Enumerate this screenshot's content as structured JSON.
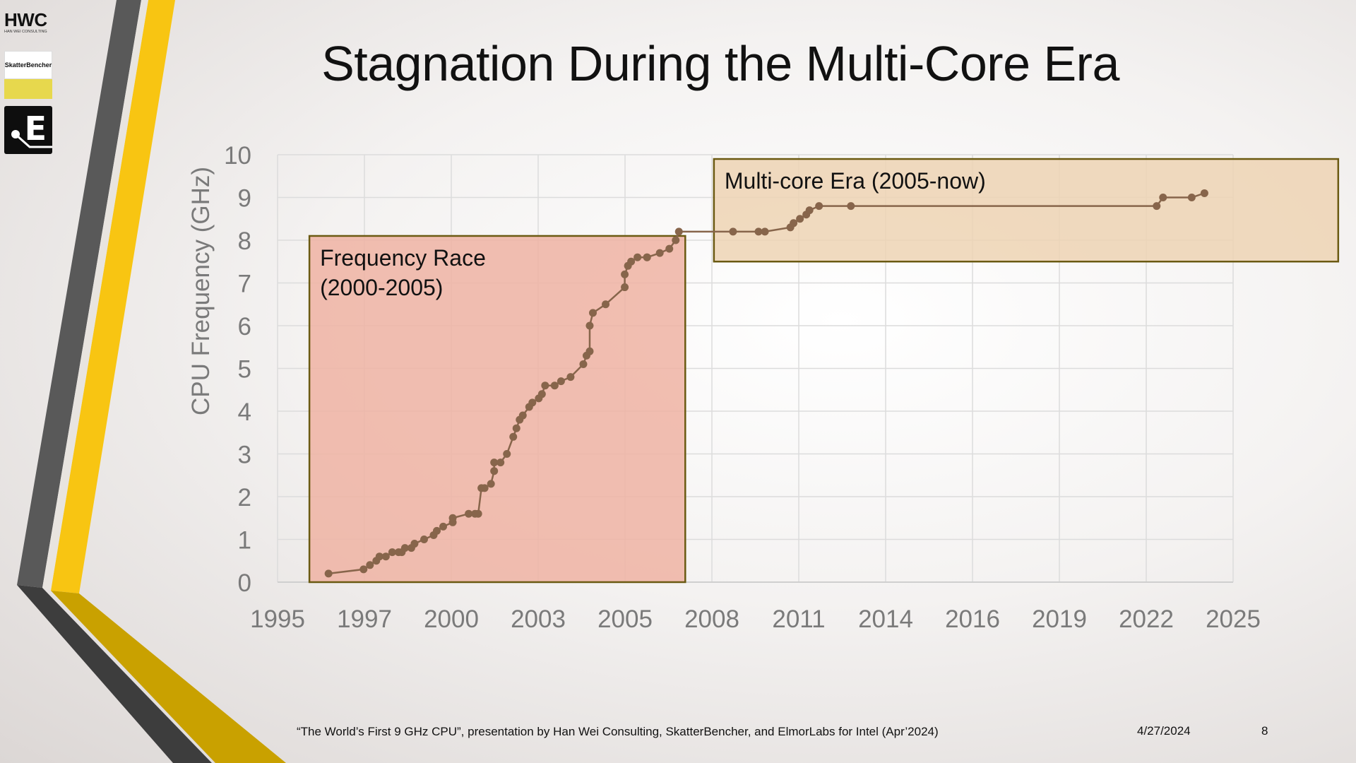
{
  "slide": {
    "title": "Stagnation During the Multi-Core Era",
    "footer_note": "“The World’s First 9 GHz CPU”, presentation by Han Wei Consulting, SkatterBencher, and ElmorLabs for Intel (Apr’2024)",
    "date": "4/27/2024",
    "page_number": "8"
  },
  "logos": {
    "hwc_text": "HWC",
    "hwc_subtext": "HAN WEI CONSULTING",
    "skatterbencher_text": "SkatterBencher",
    "elmorlabs_letter": "E"
  },
  "colors": {
    "accent_yellow": "#f8c512",
    "accent_dark_yellow": "#c9a100",
    "stripe_gray": "#595959",
    "stripe_dark": "#3a3a3a",
    "series_color": "#87654b",
    "frequency_race_fill": "#efb3a3",
    "multicore_fill": "#edd3b4",
    "box_border": "#6b5a12"
  },
  "chart_data": {
    "type": "scatter",
    "title": "",
    "xlabel": "",
    "ylabel": "CPU Frequency (GHz)",
    "xlim": [
      1995,
      2025
    ],
    "ylim": [
      0,
      10
    ],
    "x_ticks": [
      "1995",
      "1997",
      "2000",
      "2003",
      "2005",
      "2008",
      "2011",
      "2014",
      "2016",
      "2019",
      "2022",
      "2025"
    ],
    "y_ticks": [
      "0",
      "1",
      "2",
      "3",
      "4",
      "5",
      "6",
      "7",
      "8",
      "9",
      "10"
    ],
    "grid": true,
    "series": [
      {
        "x": [
          1996.6,
          1997.7,
          1997.9,
          1998.1,
          1998.2,
          1998.4,
          1998.6,
          1998.8,
          1998.9,
          1999.0,
          1999.2,
          1999.3,
          1999.6,
          1999.9,
          2000.0,
          2000.2,
          2000.5,
          2000.5,
          2001.0,
          2001.2,
          2001.3,
          2001.4,
          2001.5,
          2001.7,
          2001.8,
          2001.8,
          2002.0,
          2002.2,
          2002.4,
          2002.5,
          2002.6,
          2002.7,
          2002.9,
          2003.0,
          2003.2,
          2003.3,
          2003.4,
          2003.7,
          2003.9,
          2004.2,
          2004.6,
          2004.7,
          2004.8,
          2004.8,
          2004.9,
          2005.3,
          2005.9,
          2005.9,
          2006.0,
          2006.1,
          2006.3,
          2006.6,
          2006.6,
          2007.0,
          2007.3,
          2007.5,
          2007.6,
          2009.3,
          2010.1,
          2010.3,
          2011.1,
          2011.2,
          2011.4,
          2011.6,
          2011.7,
          2012.0,
          2013.0,
          2022.6,
          2022.8,
          2023.7,
          2024.1
        ],
        "y": [
          0.2,
          0.3,
          0.4,
          0.5,
          0.6,
          0.6,
          0.7,
          0.7,
          0.7,
          0.8,
          0.8,
          0.9,
          1.0,
          1.1,
          1.2,
          1.3,
          1.4,
          1.5,
          1.6,
          1.6,
          1.6,
          2.2,
          2.2,
          2.3,
          2.6,
          2.8,
          2.8,
          3.0,
          3.4,
          3.6,
          3.8,
          3.9,
          4.1,
          4.2,
          4.3,
          4.4,
          4.6,
          4.6,
          4.7,
          4.8,
          5.1,
          5.3,
          5.4,
          6.0,
          6.3,
          6.5,
          6.9,
          7.2,
          7.4,
          7.5,
          7.6,
          7.6,
          7.6,
          7.7,
          7.8,
          8.0,
          8.2,
          8.2,
          8.2,
          8.2,
          8.3,
          8.4,
          8.5,
          8.6,
          8.7,
          8.8,
          8.8,
          8.8,
          9.0,
          9.0,
          9.1
        ]
      }
    ],
    "annotations": [
      {
        "label": "Frequency Race",
        "label_line2": "(2000-2005)",
        "x_range": [
          1996,
          2007.8
        ],
        "y_range": [
          0,
          8.1
        ]
      },
      {
        "label": "Multi-core Era (2005-now)",
        "label_line2": "",
        "x_range": [
          2008.7,
          2028.3
        ],
        "y_range": [
          7.5,
          9.9
        ]
      }
    ]
  }
}
